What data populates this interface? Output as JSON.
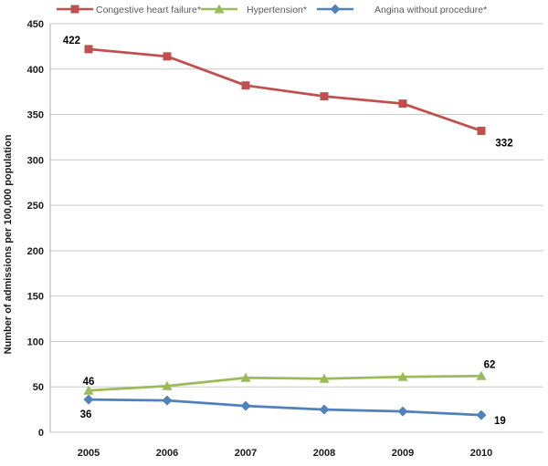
{
  "chart_data": {
    "type": "line",
    "title": "",
    "xlabel": "",
    "ylabel": "Number of admissions  per 100,000 population",
    "categories": [
      "2005",
      "2006",
      "2007",
      "2008",
      "2009",
      "2010"
    ],
    "ylim": [
      0,
      450
    ],
    "ytick_step": 50,
    "yticks": [
      "450",
      "400",
      "350",
      "300",
      "250",
      "200",
      "150",
      "100",
      "50",
      "0"
    ],
    "grid": true,
    "legend_position": "top",
    "series": [
      {
        "name": "Congestive heart failure*",
        "color": "#C0504D",
        "marker": "square",
        "values": [
          422,
          414,
          382,
          370,
          362,
          332
        ]
      },
      {
        "name": "Hypertension*",
        "color": "#9BBB59",
        "marker": "triangle",
        "values": [
          46,
          51,
          60,
          59,
          61,
          62
        ]
      },
      {
        "name": "Angina without procedure*",
        "color": "#4F81BD",
        "marker": "diamond",
        "values": [
          36,
          35,
          29,
          25,
          23,
          19
        ]
      }
    ],
    "annotations": [
      {
        "series": 0,
        "point": 0,
        "text": "422",
        "placement": "above-left"
      },
      {
        "series": 0,
        "point": 5,
        "text": "332",
        "placement": "below-right"
      },
      {
        "series": 1,
        "point": 0,
        "text": "46",
        "placement": "above"
      },
      {
        "series": 1,
        "point": 5,
        "text": "62",
        "placement": "above-right"
      },
      {
        "series": 2,
        "point": 0,
        "text": "36",
        "placement": "below"
      },
      {
        "series": 2,
        "point": 5,
        "text": "19",
        "placement": "right"
      }
    ],
    "colors": {
      "background": "#FFFFFF",
      "gridline": "#C9C9C9",
      "axis_line": "#ADADAD",
      "tick_label": "#1A1A1A",
      "legend_text": "#595959"
    }
  }
}
